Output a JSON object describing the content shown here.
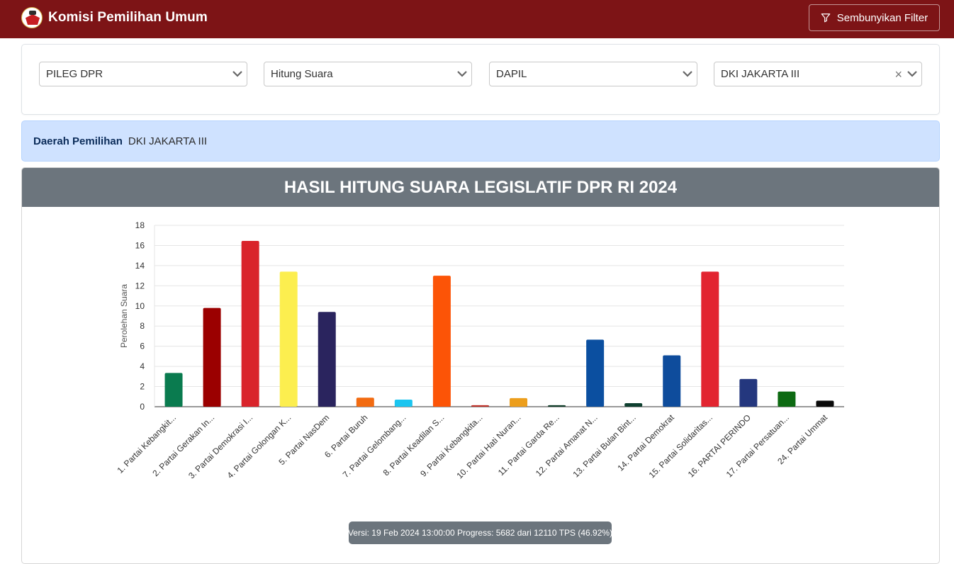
{
  "navbar": {
    "brand": "Komisi Pemilihan Umum",
    "filter_button": "Sembunyikan Filter",
    "icon": "kpu-logo"
  },
  "filters": [
    {
      "value": "PILEG DPR"
    },
    {
      "value": "Hitung Suara"
    },
    {
      "value": "DAPIL"
    },
    {
      "value": "DKI JAKARTA III",
      "clear": "×"
    }
  ],
  "alert": {
    "label": "Daerah Pemilihan",
    "value": "DKI JAKARTA III"
  },
  "chart_header": "HASIL HITUNG SUARA LEGISLATIF DPR RI 2024",
  "chart_data": {
    "type": "bar",
    "title": "HASIL HITUNG SUARA LEGISLATIF DPR RI 2024",
    "xlabel": "",
    "ylabel": "Perolehan Suara",
    "ylim": [
      0,
      18
    ],
    "yticks": [
      0,
      2,
      4,
      6,
      8,
      10,
      12,
      14,
      16,
      18
    ],
    "grid": true,
    "categories": [
      "1. Partai Kebangkit...",
      "2. Partai Gerakan In...",
      "3. Partai Demokrasi I...",
      "4. Partai Golongan K...",
      "5. Partai NasDem",
      "6. Partai Buruh",
      "7. Partai Gelombang...",
      "8. Partai Keadilan S...",
      "9. Partai Kebangkita...",
      "10. Partai Hati Nuran...",
      "11. Partai Garda Re...",
      "12. Partai Amanat N...",
      "13. Partai Bulan Bint...",
      "14. Partai Demokrat",
      "15. Partai Solidaritas...",
      "16. PARTAI PERINDO",
      "17. Partai Persatuan...",
      "24. Partai Ummat"
    ],
    "values": [
      3.35,
      9.8,
      16.45,
      13.4,
      9.4,
      0.9,
      0.7,
      13.0,
      0.15,
      0.85,
      0.15,
      6.65,
      0.35,
      5.1,
      13.4,
      2.75,
      1.5,
      0.6
    ],
    "colors": [
      "#0a7b4f",
      "#9b0000",
      "#d9242b",
      "#fcee4f",
      "#2a245e",
      "#f26b11",
      "#1bc5f0",
      "#fc5407",
      "#c0322a",
      "#ec9e1c",
      "#103e29",
      "#0b4fa0",
      "#0f4030",
      "#0e4c9c",
      "#e22430",
      "#24377e",
      "#0d6a12",
      "#0a0a0a"
    ]
  },
  "version_text": "Versi: 19 Feb 2024 13:00:00 Progress: 5682 dari 12110 TPS (46.92%)"
}
